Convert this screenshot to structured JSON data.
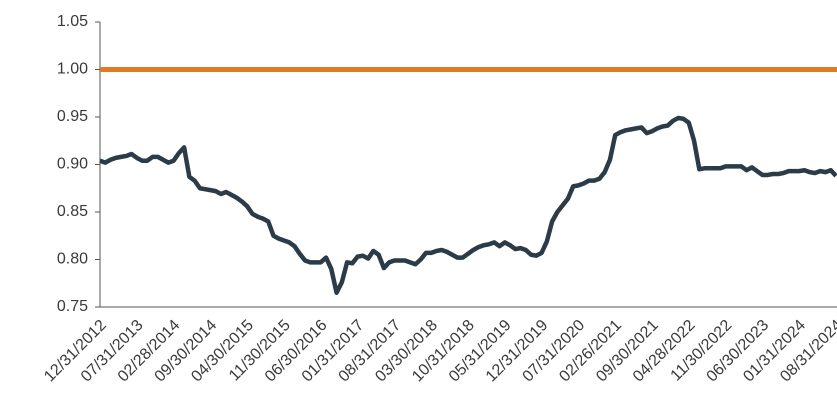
{
  "chart_data": {
    "type": "line",
    "categories": [
      "12/31/2012",
      null,
      null,
      null,
      null,
      null,
      null,
      "07/31/2013",
      null,
      null,
      null,
      null,
      null,
      null,
      "02/28/2014",
      null,
      null,
      null,
      null,
      null,
      null,
      "09/30/2014",
      null,
      null,
      null,
      null,
      null,
      null,
      "04/30/2015",
      null,
      null,
      null,
      null,
      null,
      null,
      "11/30/2015",
      null,
      null,
      null,
      null,
      null,
      null,
      "06/30/2016",
      null,
      null,
      null,
      null,
      null,
      null,
      "01/31/2017",
      null,
      null,
      null,
      null,
      null,
      null,
      "08/31/2017",
      null,
      null,
      null,
      null,
      null,
      null,
      "03/30/2018",
      null,
      null,
      null,
      null,
      null,
      null,
      "10/31/2018",
      null,
      null,
      null,
      null,
      null,
      null,
      "05/31/2019",
      null,
      null,
      null,
      null,
      null,
      null,
      "12/31/2019",
      null,
      null,
      null,
      null,
      null,
      null,
      "07/31/2020",
      null,
      null,
      null,
      null,
      null,
      null,
      "02/26/2021",
      null,
      null,
      null,
      null,
      null,
      null,
      "09/30/2021",
      null,
      null,
      null,
      null,
      null,
      null,
      "04/28/2022",
      null,
      null,
      null,
      null,
      null,
      null,
      "11/30/2022",
      null,
      null,
      null,
      null,
      null,
      null,
      "06/30/2023",
      null,
      null,
      null,
      null,
      null,
      null,
      "01/31/2024",
      null,
      null,
      null,
      null,
      null,
      null,
      "08/31/2024"
    ],
    "series": [
      {
        "color": "#2b3b47",
        "values": [
          0.904,
          0.902,
          0.905,
          0.907,
          0.908,
          0.909,
          0.911,
          0.907,
          0.904,
          0.904,
          0.908,
          0.908,
          0.905,
          0.902,
          0.904,
          0.912,
          0.918,
          0.887,
          0.883,
          0.875,
          0.874,
          0.873,
          0.872,
          0.869,
          0.871,
          0.868,
          0.865,
          0.861,
          0.856,
          0.848,
          0.845,
          0.843,
          0.84,
          0.825,
          0.822,
          0.82,
          0.818,
          0.814,
          0.806,
          0.799,
          0.797,
          0.797,
          0.797,
          0.802,
          0.79,
          0.765,
          0.776,
          0.797,
          0.796,
          0.803,
          0.804,
          0.801,
          0.809,
          0.805,
          0.791,
          0.797,
          0.799,
          0.799,
          0.799,
          0.797,
          0.795,
          0.8,
          0.807,
          0.807,
          0.809,
          0.81,
          0.808,
          0.805,
          0.802,
          0.802,
          0.806,
          0.81,
          0.813,
          0.815,
          0.816,
          0.818,
          0.814,
          0.818,
          0.815,
          0.811,
          0.812,
          0.81,
          0.805,
          0.804,
          0.807,
          0.819,
          0.84,
          0.85,
          0.857,
          0.864,
          0.877,
          0.878,
          0.88,
          0.883,
          0.883,
          0.885,
          0.892,
          0.905,
          0.931,
          0.934,
          0.936,
          0.937,
          0.938,
          0.939,
          0.933,
          0.935,
          0.938,
          0.94,
          0.941,
          0.946,
          0.949,
          0.948,
          0.944,
          0.925,
          0.895,
          0.896,
          0.896,
          0.896,
          0.896,
          0.898,
          0.898,
          0.898,
          0.898,
          0.894,
          0.897,
          0.893,
          0.889,
          0.889,
          0.89,
          0.89,
          0.891,
          0.893,
          0.893,
          0.893,
          0.894,
          0.892,
          0.891,
          0.893,
          0.892,
          0.894,
          0.888
        ]
      }
    ],
    "reference_line": {
      "value": 1.0,
      "color": "#e07b22"
    },
    "ylim": [
      0.75,
      1.05
    ],
    "yticks": [
      {
        "value": 0.75,
        "label": "0.75"
      },
      {
        "value": 0.8,
        "label": "0.80"
      },
      {
        "value": 0.85,
        "label": "0.85"
      },
      {
        "value": 0.9,
        "label": "0.90"
      },
      {
        "value": 0.95,
        "label": "0.95"
      },
      {
        "value": 1.0,
        "label": "1.00"
      },
      {
        "value": 1.05,
        "label": "1.05"
      }
    ]
  }
}
